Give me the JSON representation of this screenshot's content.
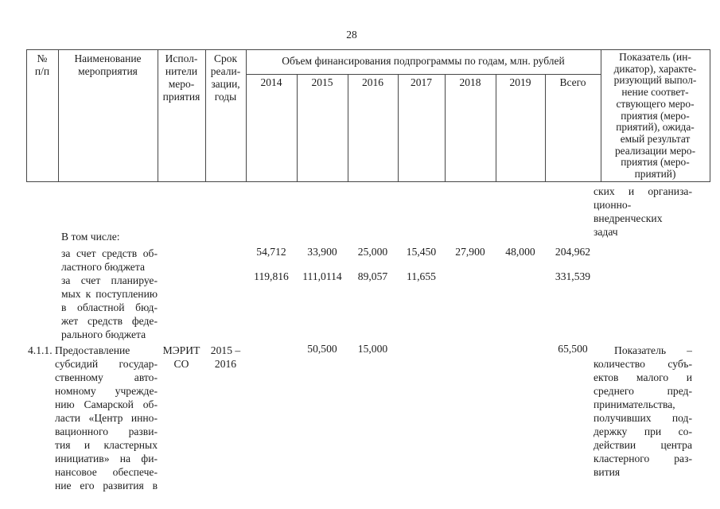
{
  "page": {
    "number": "28"
  },
  "table": {
    "header": {
      "col_no": "№\nп/п",
      "col_name": "Наименование\nмероприятия",
      "col_executors": "Испол-\nнители\nмеро-\nприятия",
      "col_term": "Срок\nреали-\nзации,\nгоды",
      "finance_title": "Объем финансирования подпрограммы по годам, млн. рублей",
      "years": [
        "2014",
        "2015",
        "2016",
        "2017",
        "2018",
        "2019",
        "Всего"
      ],
      "col_indicator": "Показатель (ин-\nдикатор), характе-\nризующий выпол-\nнение соответ-\nствующего меро-\nприятия (меро-\nприятий), ожида-\nемый результат\nреализации меро-\nприятия (меро-\nприятий)"
    },
    "body": {
      "indicator_continuation": "ских и организа-\nционно-\nвнедренческих\nзадач",
      "including_label": "В том числе:",
      "row_regional": {
        "name": "за счет средств об-\nластного бюджета",
        "values": [
          "54,712",
          "33,900",
          "25,000",
          "15,450",
          "27,900",
          "48,000",
          "204,962"
        ]
      },
      "row_federal": {
        "name": "за счет планируе-\nмых к поступлению\nв областной бюд-\nжет средств феде-\nрального бюджета",
        "values": [
          "119,816",
          "111,0114",
          "89,057",
          "11,655",
          "",
          "",
          "331,539"
        ]
      },
      "row_411": {
        "number": "4.1.1.",
        "name": "Предоставление\nсубсидий государ-\nственному авто-\nномному учрежде-\nнию Самарской об-\nласти «Центр инно-\nвационного разви-\nтия и кластерных\nинициатив» на фи-\nнансовое обеспече-\nние его развития в",
        "executor": "МЭРИТ\nСО",
        "term": "2015 –\n2016",
        "values": [
          "",
          "50,500",
          "15,000",
          "",
          "",
          "",
          "65,500"
        ],
        "indicator": "Показатель –\nколичество субъ-\nектов малого и\nсреднего пред-\nпринимательства,\nполучивших под-\nдержку при со-\nдействии центра\nкластерного раз-\nвития"
      }
    }
  }
}
